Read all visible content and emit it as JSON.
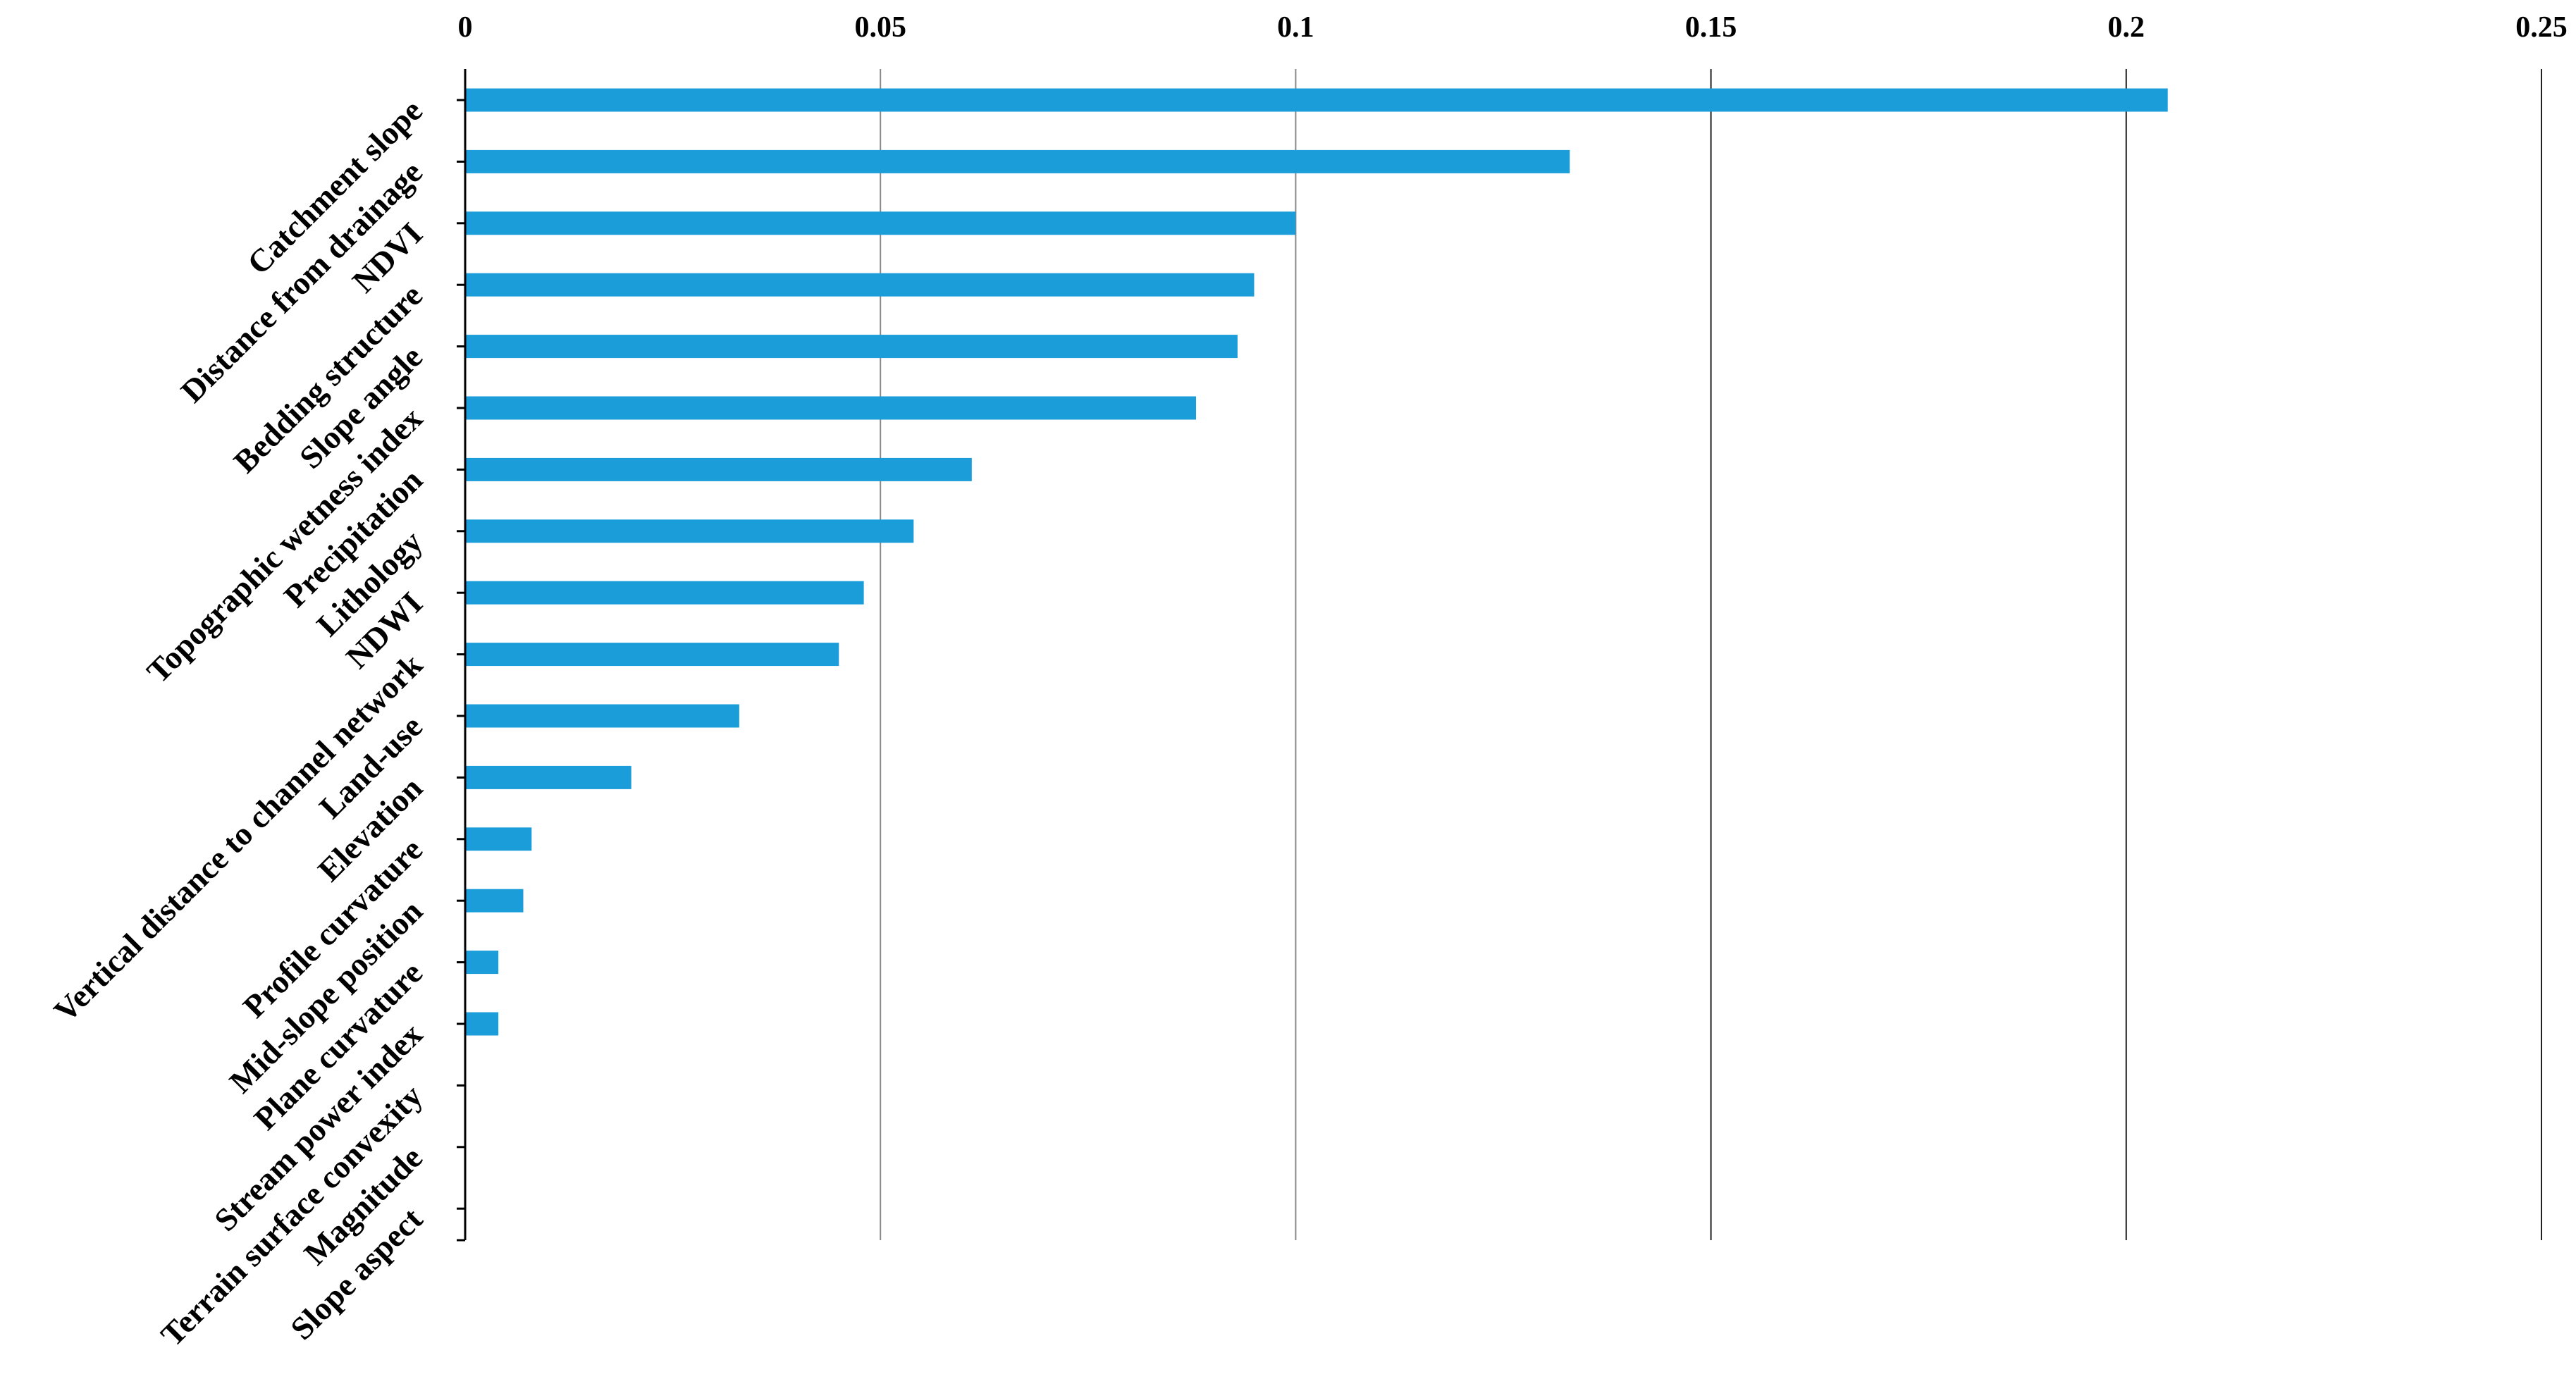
{
  "chart_data": {
    "type": "bar",
    "orientation": "horizontal",
    "title": "",
    "xlabel": "",
    "ylabel": "",
    "categories": [
      "Catchment slope",
      "Distance from drainage",
      "NDVI",
      "Bedding structure",
      "Slope angle",
      "Topographic wetness index",
      "Precipitation",
      "Lithology",
      "NDWI",
      "Vertical distance to channel network",
      "Land-use",
      "Elevation",
      "Profile curvature",
      "Mid-slope position",
      "Plane curvature",
      "Stream power index",
      "Terrain surface convexity",
      "Magnitude",
      "Slope aspect"
    ],
    "values": [
      0.205,
      0.133,
      0.1,
      0.095,
      0.093,
      0.088,
      0.061,
      0.054,
      0.048,
      0.045,
      0.033,
      0.02,
      0.008,
      0.007,
      0.004,
      0.004,
      0,
      0,
      0
    ],
    "xlim": [
      0,
      0.25
    ],
    "x_ticks": [
      "0",
      "0.05",
      "0.1",
      "0.15",
      "0.2",
      "0.25"
    ],
    "x_tick_values": [
      0,
      0.05,
      0.1,
      0.15,
      0.2,
      0.25
    ],
    "x_axis_position": "top",
    "grid": true,
    "legend": "none",
    "colors": {
      "bar": "#1b9dd9",
      "grid": "#888888",
      "axis": "#000000"
    }
  }
}
